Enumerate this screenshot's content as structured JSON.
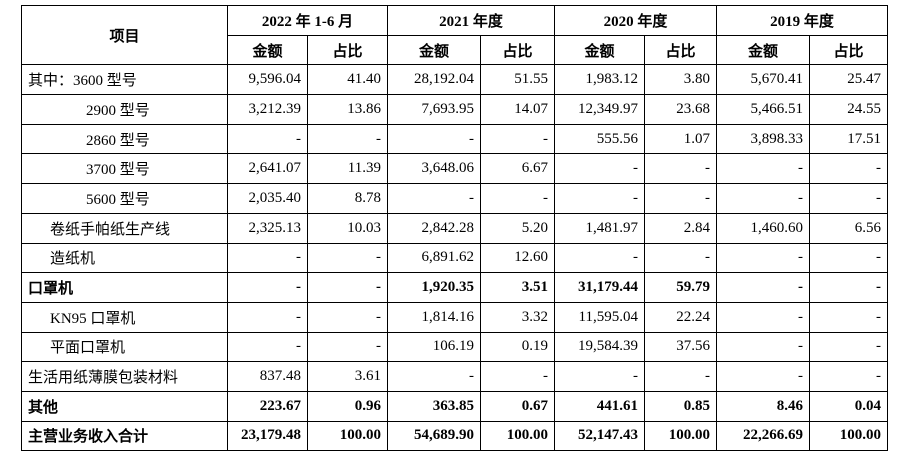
{
  "table": {
    "header": {
      "item": "项目",
      "periods": [
        "2022 年 1-6 月",
        "2021 年度",
        "2020 年度",
        "2019 年度"
      ],
      "sub": [
        "金额",
        "占比"
      ]
    },
    "rows": [
      [
        "其中：3600 型号",
        "9,596.04",
        "41.40",
        "28,192.04",
        "51.55",
        "1,983.12",
        "3.80",
        "5,670.41",
        "25.47"
      ],
      [
        "2900 型号",
        "3,212.39",
        "13.86",
        "7,693.95",
        "14.07",
        "12,349.97",
        "23.68",
        "5,466.51",
        "24.55"
      ],
      [
        "2860 型号",
        "-",
        "-",
        "-",
        "-",
        "555.56",
        "1.07",
        "3,898.33",
        "17.51"
      ],
      [
        "3700 型号",
        "2,641.07",
        "11.39",
        "3,648.06",
        "6.67",
        "-",
        "-",
        "-",
        "-"
      ],
      [
        "5600 型号",
        "2,035.40",
        "8.78",
        "-",
        "-",
        "-",
        "-",
        "-",
        "-"
      ],
      [
        "卷纸手帕纸生产线",
        "2,325.13",
        "10.03",
        "2,842.28",
        "5.20",
        "1,481.97",
        "2.84",
        "1,460.60",
        "6.56"
      ],
      [
        "造纸机",
        "-",
        "-",
        "6,891.62",
        "12.60",
        "-",
        "-",
        "-",
        "-"
      ],
      [
        "口罩机",
        "-",
        "-",
        "1,920.35",
        "3.51",
        "31,179.44",
        "59.79",
        "-",
        "-"
      ],
      [
        "KN95 口罩机",
        "-",
        "-",
        "1,814.16",
        "3.32",
        "11,595.04",
        "22.24",
        "-",
        "-"
      ],
      [
        "平面口罩机",
        "-",
        "-",
        "106.19",
        "0.19",
        "19,584.39",
        "37.56",
        "-",
        "-"
      ],
      [
        "生活用纸薄膜包装材料",
        "837.48",
        "3.61",
        "-",
        "-",
        "-",
        "-",
        "-",
        "-"
      ],
      [
        "其他",
        "223.67",
        "0.96",
        "363.85",
        "0.67",
        "441.61",
        "0.85",
        "8.46",
        "0.04"
      ],
      [
        "主营业务收入合计",
        "23,179.48",
        "100.00",
        "54,689.90",
        "100.00",
        "52,147.43",
        "100.00",
        "22,266.69",
        "100.00"
      ]
    ]
  }
}
